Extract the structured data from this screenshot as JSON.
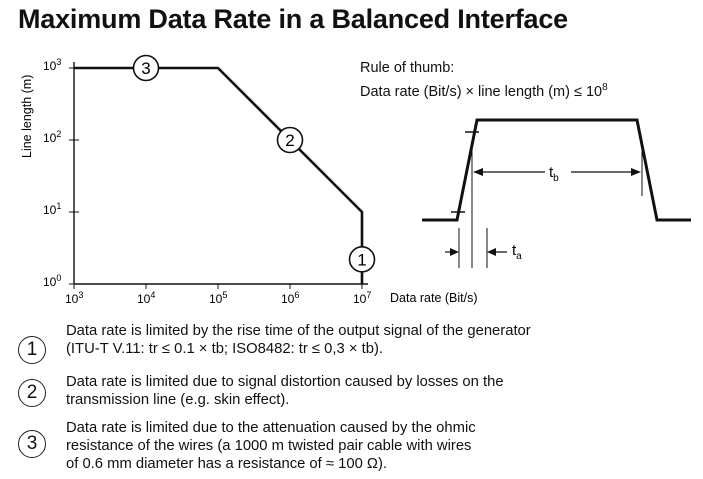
{
  "title": "Maximum Data Rate in a Balanced Interface",
  "rule": {
    "heading": "Rule of thumb:",
    "formula": "Data rate (Bit/s) × line length (m) ≤ 10",
    "exponent": "8"
  },
  "pulse": {
    "tb_label": "t",
    "tb_sub": "b",
    "ta_label": "t",
    "ta_sub": "a"
  },
  "chart_data": {
    "type": "line",
    "x_scale": "log",
    "y_scale": "log",
    "xlabel": "Data rate (Bit/s)",
    "ylabel": "Line length (m)",
    "xlim": [
      1000,
      10000000
    ],
    "ylim": [
      1,
      1000
    ],
    "x_tick_labels": [
      {
        "value": 1000,
        "base": "10",
        "exp": "3"
      },
      {
        "value": 10000,
        "base": "10",
        "exp": "4"
      },
      {
        "value": 100000,
        "base": "10",
        "exp": "5"
      },
      {
        "value": 1000000,
        "base": "10",
        "exp": "6"
      },
      {
        "value": 10000000,
        "base": "10",
        "exp": "7"
      }
    ],
    "y_tick_labels": [
      {
        "value": 1,
        "base": "10",
        "exp": "0"
      },
      {
        "value": 10,
        "base": "10",
        "exp": "1"
      },
      {
        "value": 100,
        "base": "10",
        "exp": "2"
      },
      {
        "value": 1000,
        "base": "10",
        "exp": "3"
      }
    ],
    "series": [
      {
        "x": [
          1000,
          100000,
          10000000,
          10000000
        ],
        "y": [
          1000,
          1000,
          10,
          1
        ]
      }
    ],
    "markers": [
      {
        "label": "1",
        "x": 10000000,
        "y": 2.2
      },
      {
        "label": "2",
        "x": 1000000,
        "y": 100
      },
      {
        "label": "3",
        "x": 10000,
        "y": 1000
      }
    ],
    "grid": false
  },
  "notes": [
    {
      "badge": "1",
      "text": "Data rate is limited by the rise time of the output signal of the generator\n(ITU-T V.11: tr ≤ 0.1 × tb; ISO8482: tr ≤ 0,3 × tb)."
    },
    {
      "badge": "2",
      "text": "Data rate is limited due to signal distortion caused by losses on the\ntransmission line (e.g. skin effect)."
    },
    {
      "badge": "3",
      "text": "Data rate is limited due to the attenuation caused by the ohmic\nresistance of the wires (a 1000 m twisted pair cable with wires\nof 0.6 mm diameter has a resistance of ≈ 100 Ω)."
    }
  ]
}
